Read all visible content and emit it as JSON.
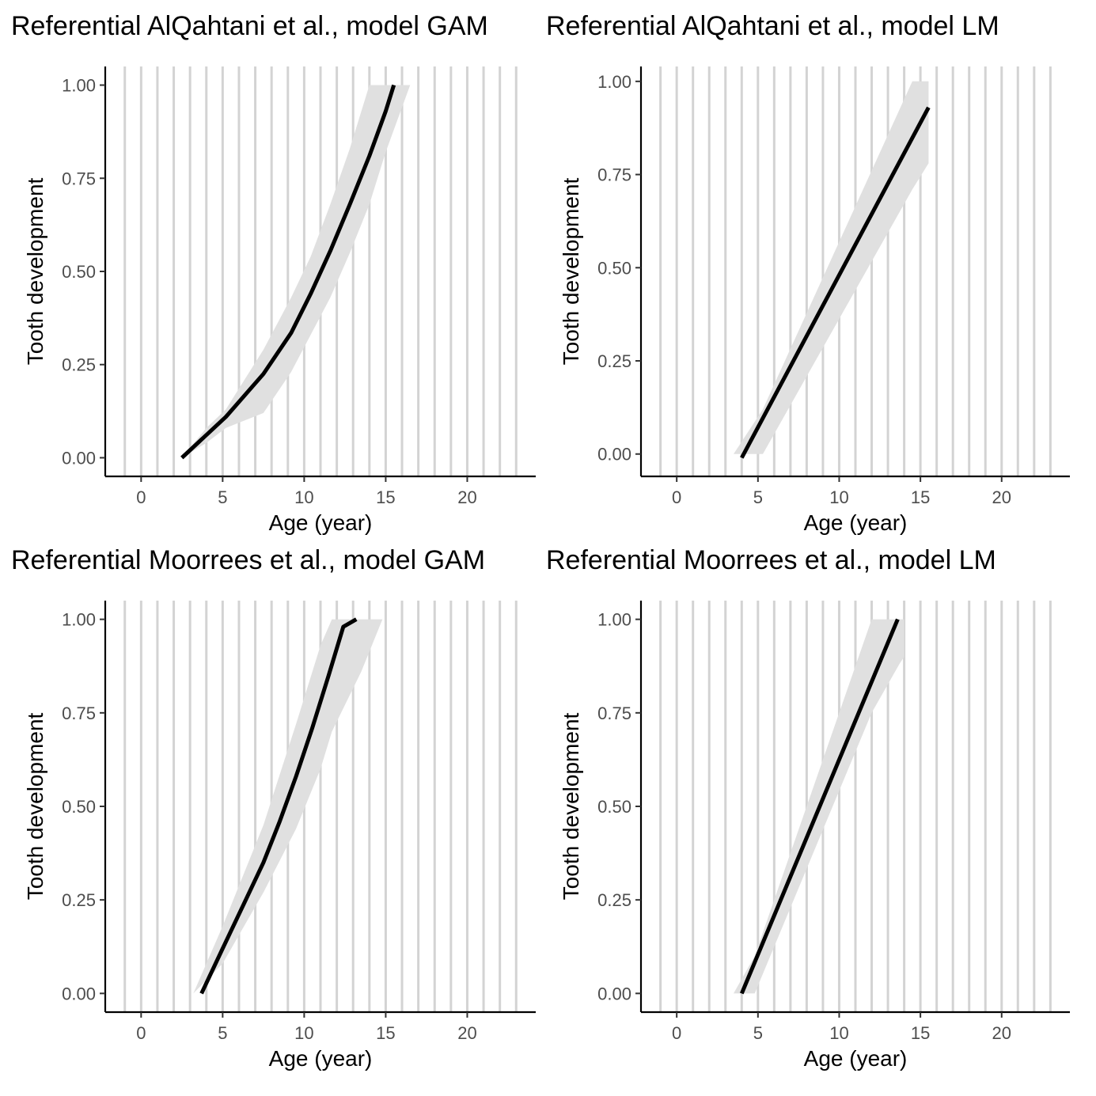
{
  "chart_data": [
    {
      "type": "line",
      "title": "Referential AlQahtani et al., model GAM",
      "xlabel": "Age (year)",
      "ylabel": "Tooth development",
      "xlim": [
        -2.2,
        24.2
      ],
      "ylim": [
        -0.05,
        1.05
      ],
      "x_ticks": [
        "0",
        "5",
        "10",
        "15",
        "20"
      ],
      "y_ticks": [
        "0.00",
        "0.25",
        "0.50",
        "0.75",
        "1.00"
      ],
      "grid_x": [
        -1,
        0,
        1,
        2,
        3,
        4,
        5,
        6,
        7,
        8,
        9,
        10,
        11,
        12,
        13,
        14,
        15,
        16,
        17,
        18,
        19,
        20,
        21,
        22,
        23
      ],
      "line": {
        "x": [
          2.5,
          5.2,
          7.5,
          9.2,
          10.4,
          11.6,
          12.8,
          14.0,
          15.0,
          15.5
        ],
        "y": [
          0.0,
          0.11,
          0.225,
          0.335,
          0.44,
          0.555,
          0.68,
          0.81,
          0.93,
          1.0
        ]
      },
      "ribbon": {
        "x": [
          2.5,
          4.0,
          5.2,
          7.5,
          9.2,
          10.4,
          11.6,
          12.8,
          14.0,
          15.0,
          16.5
        ],
        "upper": [
          0.0,
          0.08,
          0.13,
          0.29,
          0.43,
          0.54,
          0.68,
          0.83,
          1.0,
          1.0,
          1.0
        ],
        "lower": [
          0.0,
          0.04,
          0.08,
          0.12,
          0.23,
          0.33,
          0.43,
          0.55,
          0.68,
          0.82,
          1.0
        ]
      }
    },
    {
      "type": "line",
      "title": "Referential AlQahtani et al., model LM",
      "xlabel": "Age (year)",
      "ylabel": "Tooth development",
      "xlim": [
        -2.2,
        24.2
      ],
      "ylim": [
        -0.06,
        1.04
      ],
      "x_ticks": [
        "0",
        "5",
        "10",
        "15",
        "20"
      ],
      "y_ticks": [
        "0.00",
        "0.25",
        "0.50",
        "0.75",
        "1.00"
      ],
      "grid_x": [
        -1,
        0,
        1,
        2,
        3,
        4,
        5,
        6,
        7,
        8,
        9,
        10,
        11,
        12,
        13,
        14,
        15,
        16,
        17,
        18,
        19,
        20,
        21,
        22,
        23
      ],
      "line": {
        "x": [
          4.0,
          15.5
        ],
        "y": [
          -0.01,
          0.93
        ]
      },
      "ribbon": {
        "x": [
          3.5,
          5.3,
          14.5,
          15.5
        ],
        "upper": [
          0.0,
          0.12,
          1.0,
          1.0
        ],
        "lower": [
          0.0,
          0.0,
          0.71,
          0.78
        ]
      }
    },
    {
      "type": "line",
      "title": "Referential Moorrees et al., model GAM",
      "xlabel": "Age (year)",
      "ylabel": "Tooth development",
      "xlim": [
        -2.2,
        24.2
      ],
      "ylim": [
        -0.05,
        1.05
      ],
      "x_ticks": [
        "0",
        "5",
        "10",
        "15",
        "20"
      ],
      "y_ticks": [
        "0.00",
        "0.25",
        "0.50",
        "0.75",
        "1.00"
      ],
      "grid_x": [
        -1,
        0,
        1,
        2,
        3,
        4,
        5,
        6,
        7,
        8,
        9,
        10,
        11,
        12,
        13,
        14,
        15,
        16,
        17,
        18,
        19,
        20,
        21,
        22,
        23
      ],
      "line": {
        "x": [
          3.7,
          5.0,
          6.2,
          7.5,
          8.5,
          9.5,
          10.5,
          11.5,
          12.4,
          13.2
        ],
        "y": [
          0.0,
          0.12,
          0.23,
          0.35,
          0.46,
          0.58,
          0.71,
          0.85,
          0.98,
          1.0
        ]
      },
      "ribbon": {
        "x": [
          3.2,
          5.0,
          7.5,
          9.5,
          11.0,
          11.7,
          13.5,
          14.8
        ],
        "upper": [
          0.0,
          0.18,
          0.45,
          0.72,
          0.93,
          1.0,
          1.0,
          1.0
        ],
        "lower": [
          0.0,
          0.08,
          0.27,
          0.44,
          0.6,
          0.7,
          0.86,
          1.0
        ]
      }
    },
    {
      "type": "line",
      "title": "Referential Moorrees et al., model LM",
      "xlabel": "Age (year)",
      "ylabel": "Tooth development",
      "xlim": [
        -2.2,
        24.2
      ],
      "ylim": [
        -0.05,
        1.05
      ],
      "x_ticks": [
        "0",
        "5",
        "10",
        "15",
        "20"
      ],
      "y_ticks": [
        "0.00",
        "0.25",
        "0.50",
        "0.75",
        "1.00"
      ],
      "grid_x": [
        -1,
        0,
        1,
        2,
        3,
        4,
        5,
        6,
        7,
        8,
        9,
        10,
        11,
        12,
        13,
        14,
        15,
        16,
        17,
        18,
        19,
        20,
        21,
        22,
        23
      ],
      "line": {
        "x": [
          4.0,
          13.6
        ],
        "y": [
          0.0,
          1.0
        ]
      },
      "ribbon": {
        "x": [
          3.5,
          4.8,
          12.0,
          13.7,
          14.0
        ],
        "upper": [
          0.0,
          0.1,
          1.0,
          1.0,
          1.0
        ],
        "lower": [
          0.0,
          0.0,
          0.75,
          0.88,
          0.9
        ]
      }
    }
  ]
}
